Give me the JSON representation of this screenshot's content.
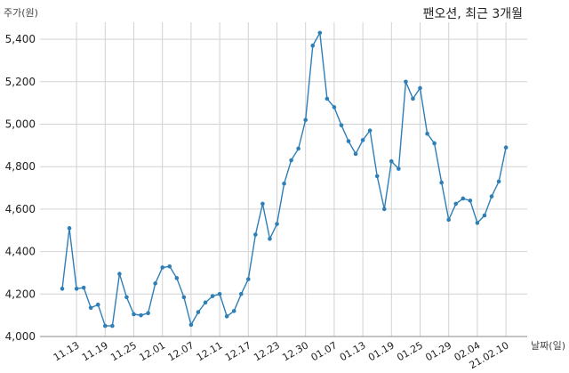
{
  "chart_data": {
    "type": "line",
    "title": "팬오션, 최근 3개월",
    "xlabel": "날짜(일)",
    "ylabel": "주가(원)",
    "ylim": [
      4000,
      5480
    ],
    "yticks": [
      4000,
      4200,
      4400,
      4600,
      4800,
      5000,
      5200,
      5400
    ],
    "ytick_labels": [
      "4,000",
      "4,200",
      "4,400",
      "4,600",
      "4,800",
      "5,000",
      "5,200",
      "5,400"
    ],
    "xtick_labels": [
      "11.13",
      "11.19",
      "11.25",
      "12.01",
      "12.07",
      "12.11",
      "12.17",
      "12.23",
      "12.30",
      "01.07",
      "01.13",
      "01.19",
      "01.25",
      "01.29",
      "02.04",
      "21.02.10"
    ],
    "xtick_index": [
      2,
      6,
      10,
      14,
      18,
      22,
      26,
      30,
      34,
      38,
      42,
      46,
      50,
      54,
      58,
      62
    ],
    "grid": true,
    "series_color": "#2e7fb8",
    "values": [
      4225,
      4510,
      4225,
      4230,
      4135,
      4150,
      4050,
      4050,
      4295,
      4185,
      4105,
      4100,
      4110,
      4250,
      4325,
      4330,
      4275,
      4185,
      4055,
      4115,
      4160,
      4190,
      4200,
      4095,
      4120,
      4200,
      4270,
      4480,
      4625,
      4460,
      4530,
      4720,
      4830,
      4885,
      5020,
      5370,
      5430,
      5120,
      5080,
      4995,
      4920,
      4860,
      4925,
      4970,
      4755,
      4600,
      4825,
      4790,
      5200,
      5120,
      5170,
      4955,
      4910,
      4725,
      4550,
      4625,
      4650,
      4640,
      4535,
      4570,
      4660,
      4730,
      4890
    ]
  }
}
